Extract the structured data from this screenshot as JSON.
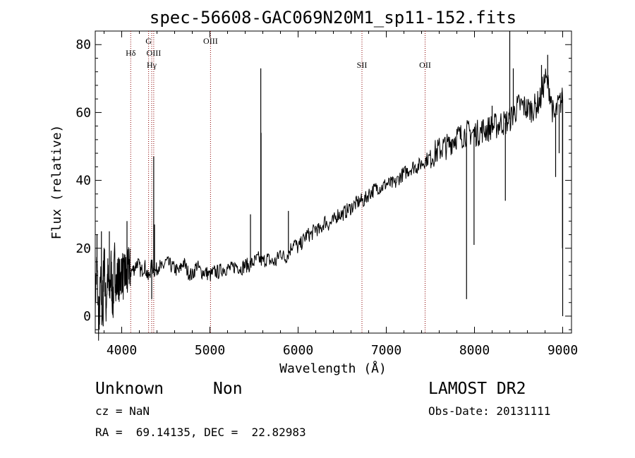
{
  "chart_data": {
    "type": "line",
    "title": "spec-56608-GAC069N20M1_sp11-152.fits",
    "xlabel": "Wavelength (Å)",
    "ylabel": "Flux (relative)",
    "xlim": [
      3700,
      9100
    ],
    "ylim": [
      -5,
      84
    ],
    "xticks": [
      4000,
      5000,
      6000,
      7000,
      8000,
      9000
    ],
    "yticks": [
      0,
      20,
      40,
      60,
      80
    ],
    "grid": false,
    "line_color": "#000000",
    "marker_color": "#8b0000",
    "spectrum": {
      "x": [
        3700,
        3720,
        3740,
        3760,
        3780,
        3800,
        3820,
        3840,
        3860,
        3880,
        3900,
        3920,
        3940,
        3960,
        3980,
        4000,
        4020,
        4040,
        4060,
        4080,
        4100,
        4140,
        4180,
        4220,
        4260,
        4300,
        4340,
        4380,
        4420,
        4460,
        4500,
        4550,
        4600,
        4650,
        4700,
        4750,
        4800,
        4850,
        4900,
        4950,
        5000,
        5050,
        5100,
        5150,
        5200,
        5250,
        5300,
        5350,
        5400,
        5450,
        5500,
        5550,
        5600,
        5650,
        5700,
        5750,
        5800,
        5850,
        5900,
        5950,
        6000,
        6050,
        6100,
        6150,
        6200,
        6250,
        6300,
        6350,
        6400,
        6450,
        6500,
        6550,
        6600,
        6650,
        6700,
        6750,
        6800,
        6850,
        6900,
        6950,
        7000,
        7050,
        7100,
        7150,
        7200,
        7250,
        7300,
        7350,
        7400,
        7450,
        7500,
        7550,
        7600,
        7650,
        7700,
        7750,
        7800,
        7850,
        7900,
        7950,
        8000,
        8050,
        8100,
        8150,
        8200,
        8250,
        8300,
        8350,
        8400,
        8450,
        8500,
        8550,
        8600,
        8650,
        8700,
        8750,
        8800,
        8850,
        8900,
        8950,
        9000
      ],
      "y": [
        5,
        15,
        -3,
        10,
        0,
        20,
        2,
        12,
        6,
        14,
        3,
        16,
        9,
        12,
        10,
        14,
        11,
        13,
        10,
        15,
        13,
        14,
        16,
        13,
        15,
        11,
        15,
        13,
        15,
        14,
        16,
        15,
        14,
        13,
        16,
        13,
        12,
        15,
        13,
        13,
        12,
        13,
        13,
        14,
        14,
        14,
        15,
        14,
        15,
        15,
        16,
        17,
        16,
        17,
        16,
        16,
        19,
        17,
        19,
        22,
        20,
        22,
        24,
        24,
        26,
        25,
        28,
        27,
        28,
        30,
        30,
        31,
        32,
        33,
        34,
        34,
        36,
        37,
        38,
        38,
        39,
        39,
        39,
        41,
        42,
        43,
        44,
        44,
        45,
        46,
        47,
        48,
        49,
        50,
        50,
        52,
        53,
        53,
        54,
        54,
        54,
        54,
        55,
        55,
        56,
        56,
        57,
        57,
        58,
        60,
        62,
        62,
        61,
        61,
        62,
        64,
        70,
        67,
        58,
        62,
        64
      ]
    },
    "spikes": [
      {
        "x": 3720,
        "y": 24
      },
      {
        "x": 3745,
        "y": -4
      },
      {
        "x": 3770,
        "y": 25
      },
      {
        "x": 3790,
        "y": -3
      },
      {
        "x": 3860,
        "y": 25
      },
      {
        "x": 4060,
        "y": 28
      },
      {
        "x": 4340,
        "y": 5
      },
      {
        "x": 4363,
        "y": 47
      },
      {
        "x": 4372,
        "y": 27
      },
      {
        "x": 5460,
        "y": 30
      },
      {
        "x": 5577,
        "y": 73
      },
      {
        "x": 5580,
        "y": 54
      },
      {
        "x": 5890,
        "y": 31
      },
      {
        "x": 7910,
        "y": 5
      },
      {
        "x": 7995,
        "y": 21
      },
      {
        "x": 8200,
        "y": 62
      },
      {
        "x": 8350,
        "y": 34
      },
      {
        "x": 8400,
        "y": 84
      },
      {
        "x": 8440,
        "y": 73
      },
      {
        "x": 8760,
        "y": 74
      },
      {
        "x": 8830,
        "y": 77
      },
      {
        "x": 8920,
        "y": 41
      },
      {
        "x": 8960,
        "y": 48
      },
      {
        "x": 8990,
        "y": 66
      },
      {
        "x": 8998,
        "y": 20
      },
      {
        "x": 9000,
        "y": 0
      }
    ],
    "lines": [
      {
        "x": 4102,
        "label": "Hδ",
        "row": 1
      },
      {
        "x": 4305,
        "label": "G",
        "row": 0
      },
      {
        "x": 4340,
        "label": "Hγ",
        "row": 2
      },
      {
        "x": 4363,
        "label": "OIII",
        "row": 1
      },
      {
        "x": 5007,
        "label": "OIII",
        "row": 0
      },
      {
        "x": 6724,
        "label": "SII",
        "row": 2
      },
      {
        "x": 7440,
        "label": "OII",
        "row": 2
      }
    ]
  },
  "info": {
    "class": "Unknown",
    "subclass": "Non",
    "cz": "cz = NaN",
    "radec": "RA =  69.14135, DEC =  22.82983",
    "survey": "LAMOST DR2",
    "obsdate": "Obs-Date: 20131111"
  }
}
